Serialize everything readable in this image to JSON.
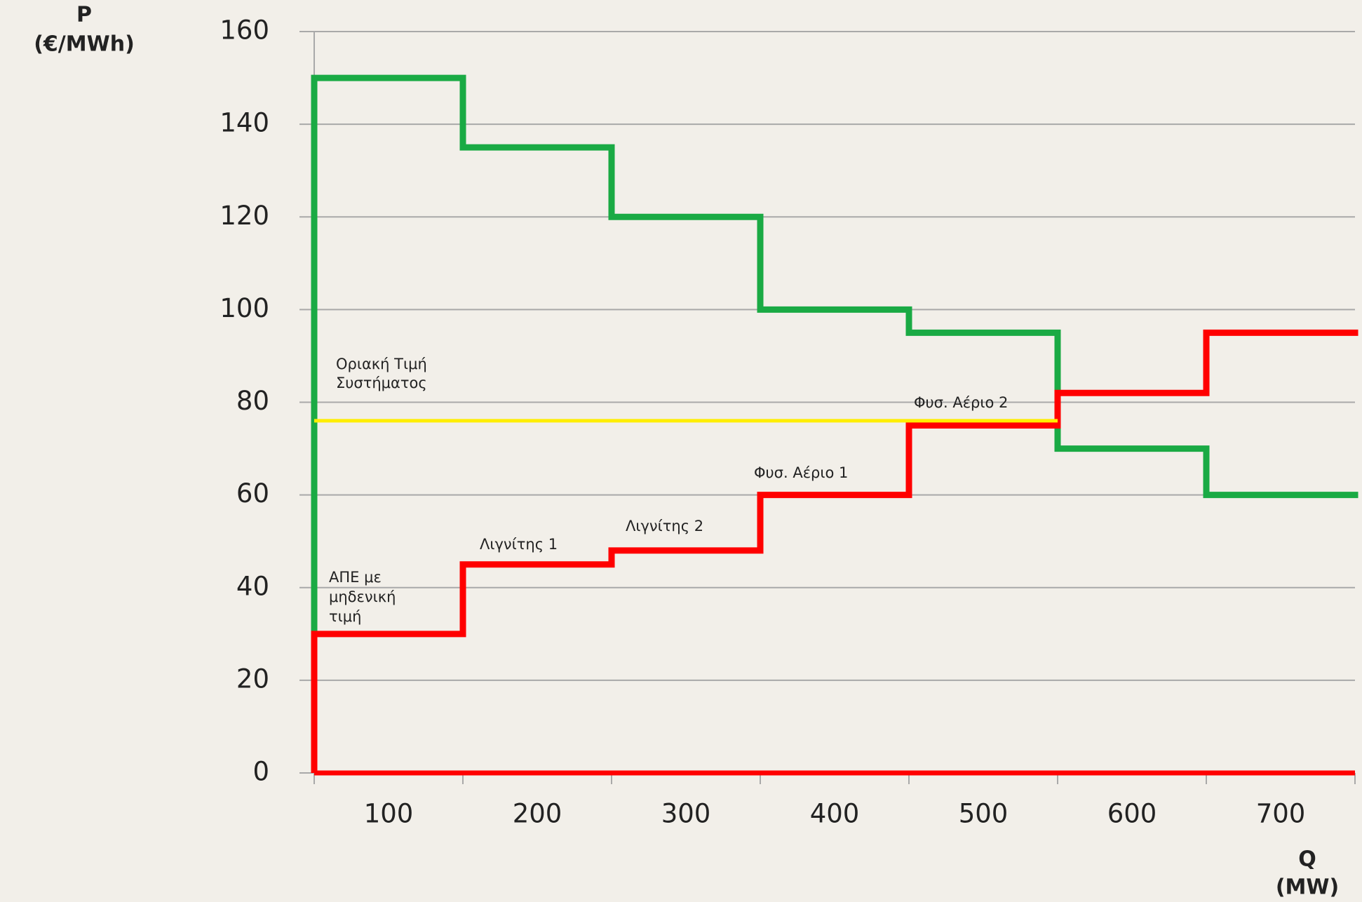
{
  "chart_data": {
    "type": "step",
    "y_label": [
      "P",
      "(€/MWh)"
    ],
    "x_label": [
      "Q",
      "(MW)"
    ],
    "categories": [
      "100",
      "200",
      "300",
      "400",
      "500",
      "600",
      "700"
    ],
    "series": [
      {
        "color": "#1aaa44",
        "values": [
          150,
          135,
          120,
          100,
          95,
          70,
          60
        ]
      },
      {
        "color": "#ff0000",
        "values": [
          30,
          45,
          48,
          60,
          75,
          82,
          95
        ]
      }
    ],
    "reference_line": {
      "label": [
        "Οριακή Τιμή",
        "Συστήματος"
      ],
      "value": 76,
      "color": "#ffee00"
    },
    "annotations": [
      [
        "ΑΠΕ με",
        "μηδενική",
        "τιμή"
      ],
      [
        "Λιγνίτης 1"
      ],
      [
        "Λιγνίτης 2"
      ],
      [
        "Φυσ. Αέριο 1"
      ],
      [
        "Φυσ. Αέριο 2"
      ]
    ],
    "ylim": [
      0,
      160
    ],
    "yticks": [
      0,
      20,
      40,
      60,
      80,
      100,
      120,
      140,
      160
    ],
    "grid": true
  }
}
